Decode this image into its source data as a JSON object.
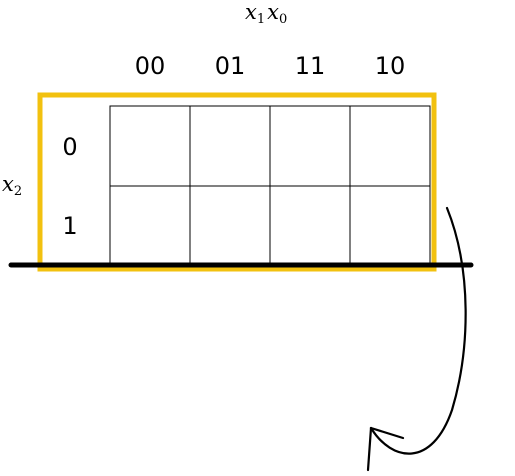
{
  "diagram": {
    "column_variables": {
      "first": {
        "base": "x",
        "sub": "1"
      },
      "second": {
        "base": "x",
        "sub": "0"
      }
    },
    "row_variable": {
      "base": "x",
      "sub": "2"
    },
    "column_headers": [
      "00",
      "01",
      "11",
      "10"
    ],
    "row_headers": [
      "0",
      "1"
    ],
    "cells": [
      [
        "",
        "",
        "",
        ""
      ],
      [
        "",
        "",
        "",
        ""
      ]
    ],
    "colors": {
      "highlight_border": "#f2c10f",
      "grid_line": "#000000",
      "fold_line": "#000000",
      "arrow": "#000000"
    }
  }
}
